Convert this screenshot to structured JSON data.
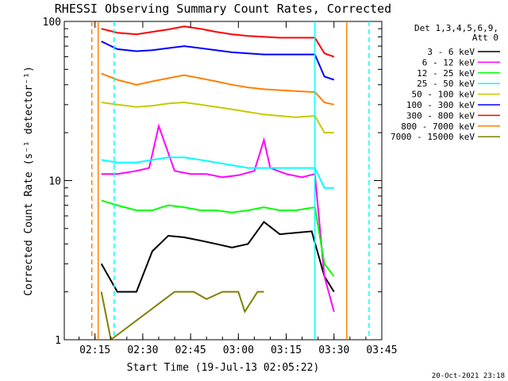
{
  "chart_data": {
    "type": "line",
    "title": "RHESSI Observing Summary Count Rates, Corrected",
    "xlabel": "Start Time (19-Jul-13 02:05:22)",
    "ylabel": "Corrected Count Rate (s⁻¹ detector⁻¹)",
    "y_scale": "log",
    "ylim": [
      1,
      100
    ],
    "xlim": [
      "02:05:22",
      "03:45:00"
    ],
    "x_ticks": [
      "02:15",
      "02:30",
      "02:45",
      "03:00",
      "03:15",
      "03:30",
      "03:45"
    ],
    "y_ticks": [
      "1",
      "10",
      "100"
    ],
    "legend_title": [
      "Det 1,3,4,5,6,9,",
      "Att 0"
    ],
    "legend_position": "right",
    "timestamp": "20-Oct-2021 23:18",
    "series": [
      {
        "name": "3 - 6 keV",
        "color": "#000000",
        "x": [
          "02:17",
          "02:22",
          "02:28",
          "02:33",
          "02:38",
          "02:43",
          "02:48",
          "02:53",
          "02:58",
          "03:03",
          "03:08",
          "03:13",
          "03:18",
          "03:23",
          "03:27",
          "03:30"
        ],
        "values": [
          3.0,
          2.0,
          2.0,
          3.6,
          4.5,
          4.4,
          4.2,
          4.0,
          3.8,
          4.0,
          5.5,
          4.6,
          4.7,
          4.8,
          2.5,
          2.0
        ]
      },
      {
        "name": "6 - 12 keV",
        "color": "#ff00ff",
        "x": [
          "02:17",
          "02:22",
          "02:28",
          "02:32",
          "02:35",
          "02:40",
          "02:45",
          "02:50",
          "02:55",
          "03:00",
          "03:05",
          "03:08",
          "03:10",
          "03:15",
          "03:20",
          "03:24",
          "03:27",
          "03:30"
        ],
        "values": [
          11.0,
          11.0,
          11.5,
          12.0,
          22.0,
          11.5,
          11.0,
          11.0,
          10.5,
          10.8,
          11.5,
          18.0,
          12.0,
          11.0,
          10.5,
          11.0,
          2.5,
          1.5
        ]
      },
      {
        "name": "12 - 25 keV",
        "color": "#00ff00",
        "x": [
          "02:17",
          "02:22",
          "02:28",
          "02:33",
          "02:38",
          "02:43",
          "02:48",
          "02:53",
          "02:58",
          "03:03",
          "03:08",
          "03:13",
          "03:18",
          "03:24",
          "03:27",
          "03:30"
        ],
        "values": [
          7.5,
          7.0,
          6.5,
          6.5,
          7.0,
          6.8,
          6.5,
          6.5,
          6.3,
          6.5,
          6.8,
          6.5,
          6.5,
          6.8,
          3.0,
          2.5
        ]
      },
      {
        "name": "25 - 50 keV",
        "color": "#00ffff",
        "x": [
          "02:17",
          "02:22",
          "02:28",
          "02:33",
          "02:38",
          "02:43",
          "02:48",
          "02:53",
          "02:58",
          "03:03",
          "03:08",
          "03:13",
          "03:18",
          "03:24",
          "03:27",
          "03:30"
        ],
        "values": [
          13.5,
          13.0,
          13.0,
          13.5,
          14.0,
          14.0,
          13.5,
          13.0,
          12.5,
          12.0,
          12.0,
          12.0,
          12.0,
          12.0,
          9.0,
          9.0
        ]
      },
      {
        "name": "50 - 100 keV",
        "color": "#c8c800",
        "x": [
          "02:17",
          "02:22",
          "02:28",
          "02:33",
          "02:38",
          "02:43",
          "02:48",
          "02:53",
          "02:58",
          "03:03",
          "03:08",
          "03:13",
          "03:18",
          "03:24",
          "03:27",
          "03:30"
        ],
        "values": [
          31.0,
          30.0,
          29.0,
          29.5,
          30.5,
          31.0,
          30.0,
          29.0,
          28.0,
          27.0,
          26.0,
          25.5,
          25.0,
          25.5,
          20.0,
          20.0
        ]
      },
      {
        "name": "100 - 300 keV",
        "color": "#0000ff",
        "x": [
          "02:17",
          "02:22",
          "02:28",
          "02:33",
          "02:38",
          "02:43",
          "02:48",
          "02:53",
          "02:58",
          "03:03",
          "03:08",
          "03:13",
          "03:18",
          "03:24",
          "03:27",
          "03:30"
        ],
        "values": [
          75.0,
          67.0,
          65.0,
          66.0,
          68.0,
          70.0,
          68.0,
          66.0,
          64.0,
          63.0,
          62.0,
          62.0,
          62.0,
          62.0,
          45.0,
          43.0
        ]
      },
      {
        "name": "300 - 800 keV",
        "color": "#ff0000",
        "x": [
          "02:17",
          "02:22",
          "02:28",
          "02:33",
          "02:38",
          "02:43",
          "02:48",
          "02:53",
          "02:58",
          "03:03",
          "03:08",
          "03:13",
          "03:18",
          "03:24",
          "03:27",
          "03:30"
        ],
        "values": [
          90.0,
          85.0,
          83.0,
          86.0,
          89.0,
          93.0,
          90.0,
          86.0,
          83.0,
          81.0,
          80.0,
          79.0,
          79.0,
          79.0,
          63.0,
          60.0
        ]
      },
      {
        "name": "800 - 7000 keV",
        "color": "#ff8000",
        "x": [
          "02:17",
          "02:22",
          "02:28",
          "02:33",
          "02:38",
          "02:43",
          "02:48",
          "02:53",
          "02:58",
          "03:03",
          "03:08",
          "03:13",
          "03:18",
          "03:24",
          "03:27",
          "03:30"
        ],
        "values": [
          47.0,
          43.0,
          40.0,
          42.0,
          44.0,
          46.0,
          44.0,
          42.0,
          40.0,
          38.5,
          37.5,
          37.0,
          36.5,
          36.0,
          31.0,
          30.0
        ]
      },
      {
        "name": "7000 - 15000 keV",
        "color": "#808000",
        "x": [
          "02:17",
          "02:20",
          "02:40",
          "02:46",
          "02:50",
          "02:55",
          "03:00",
          "03:02",
          "03:06",
          "03:08"
        ],
        "values": [
          2.0,
          1.0,
          2.0,
          2.0,
          1.8,
          2.0,
          2.0,
          1.5,
          2.0,
          2.0
        ]
      }
    ],
    "markers": [
      {
        "color": "#ff8000",
        "style": "dashed",
        "x": "02:14"
      },
      {
        "color": "#ff8000",
        "style": "solid",
        "x": "02:16"
      },
      {
        "color": "#00ffff",
        "style": "dashed",
        "x": "02:21"
      },
      {
        "color": "#00ffff",
        "style": "solid",
        "x": "03:24"
      },
      {
        "color": "#ff8000",
        "style": "solid",
        "x": "03:34"
      },
      {
        "color": "#00ffff",
        "style": "dashed",
        "x": "03:41"
      }
    ],
    "grid": false
  }
}
